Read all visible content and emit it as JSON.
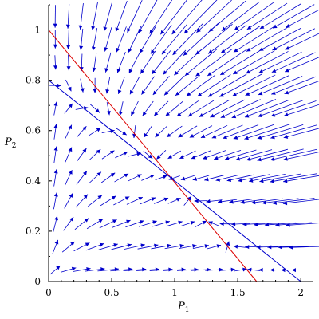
{
  "chart_data": {
    "type": "direction-field",
    "title": "",
    "xlabel": "P",
    "xlabel_subscript": "1",
    "ylabel": "P",
    "ylabel_subscript": "2",
    "xlim": [
      0,
      2.1
    ],
    "ylim": [
      0,
      1.1
    ],
    "xticks": [
      {
        "value": 0,
        "label": "0"
      },
      {
        "value": 0.5,
        "label": "0.5"
      },
      {
        "value": 1,
        "label": "1"
      },
      {
        "value": 1.5,
        "label": "1.5"
      },
      {
        "value": 2,
        "label": "2"
      }
    ],
    "yticks": [
      {
        "value": 0,
        "label": "0"
      },
      {
        "value": 0.2,
        "label": "0.2"
      },
      {
        "value": 0.4,
        "label": "0.4"
      },
      {
        "value": 0.6,
        "label": "0.6"
      },
      {
        "value": 0.8,
        "label": "0.8"
      },
      {
        "value": 1,
        "label": "1"
      }
    ],
    "grid": false,
    "field_color": "#0000cc",
    "lines": [
      {
        "x": [
          0,
          1.65
        ],
        "y": [
          1.0,
          0.0
        ],
        "color": "#dd0000"
      },
      {
        "x": [
          0,
          2.0
        ],
        "y": [
          0.8,
          0.0
        ],
        "color": "#0000cc"
      }
    ],
    "field_grid": {
      "nx": 20,
      "ny": 12
    }
  }
}
